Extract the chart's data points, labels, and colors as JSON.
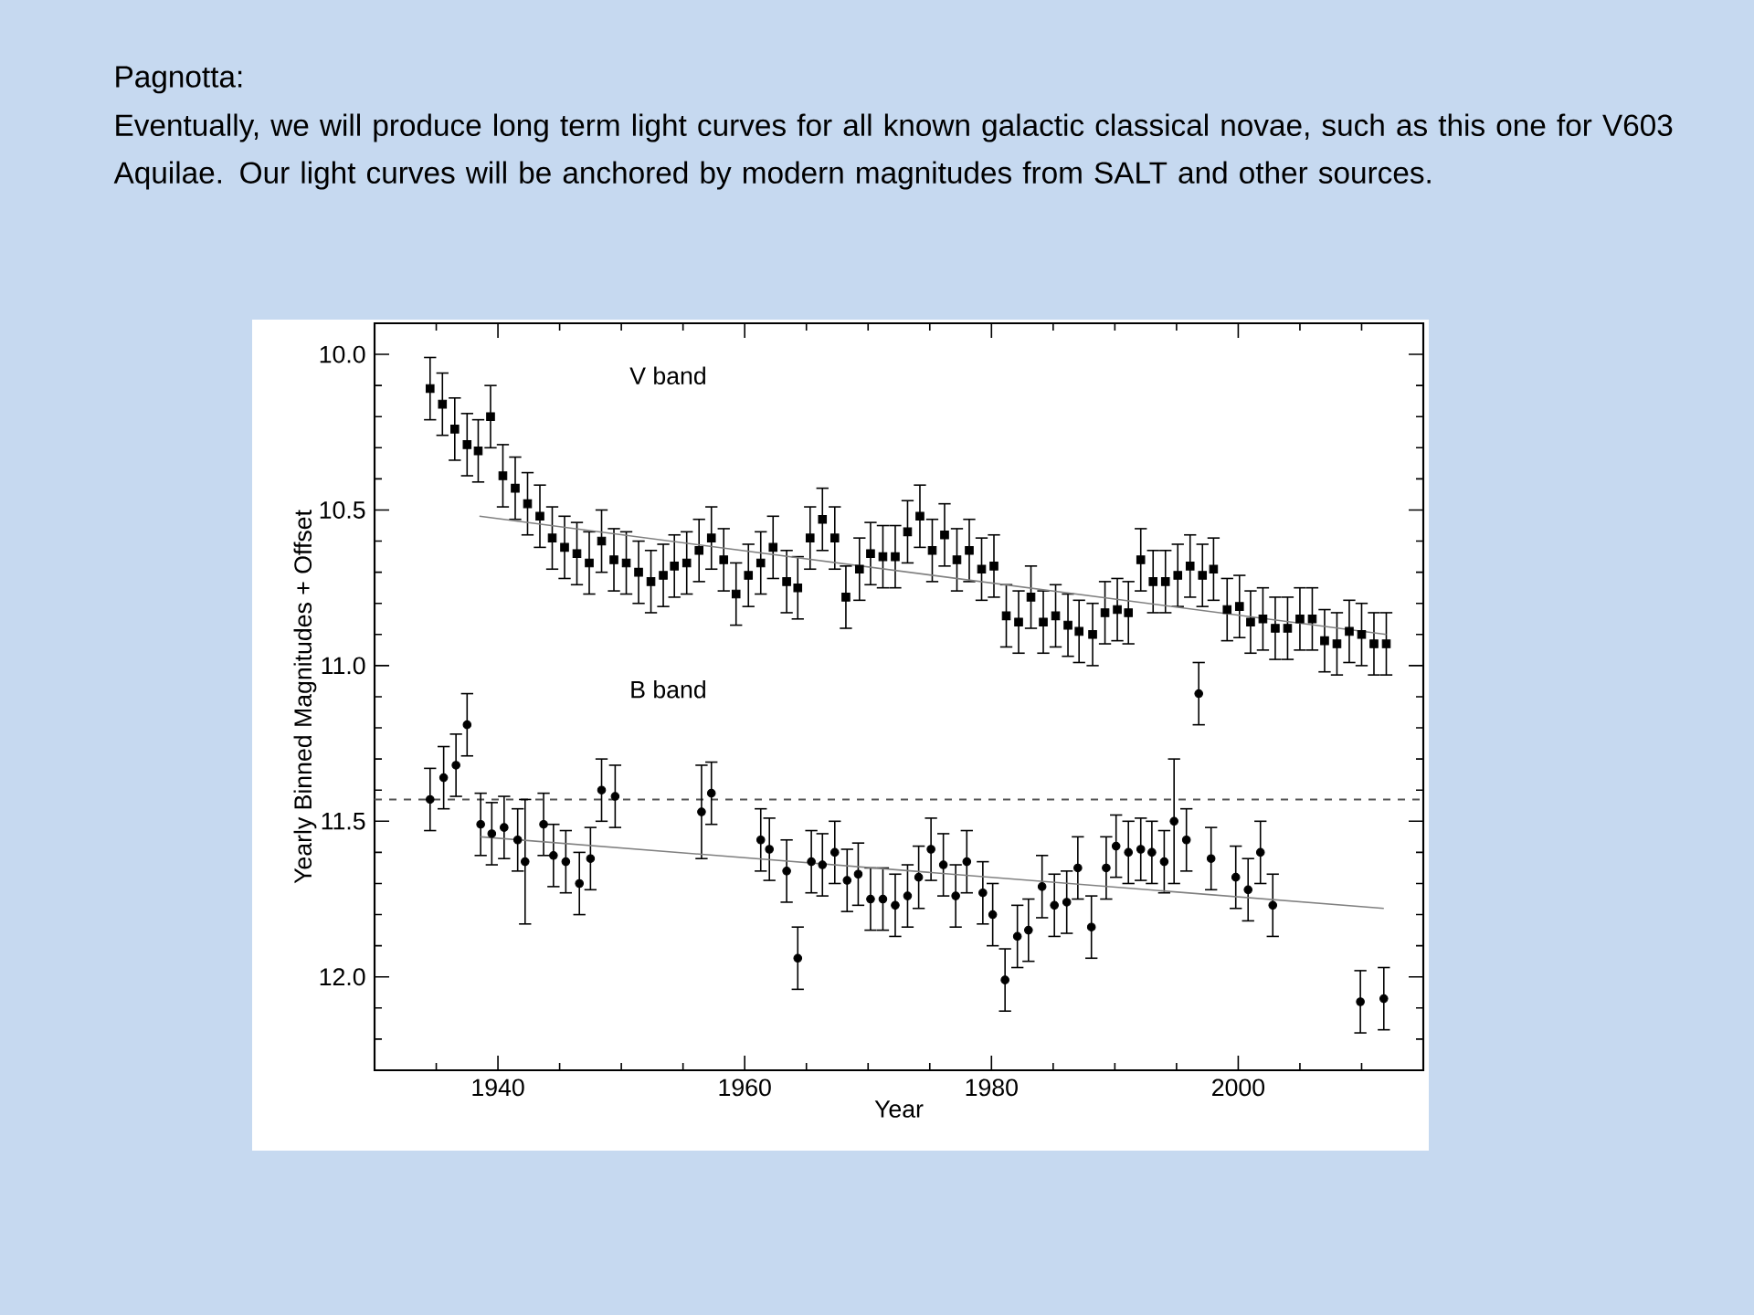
{
  "chart_data": {
    "type": "scatter",
    "title": "Pagnotta:",
    "subtitle": "Eventually, we will produce long term light curves for all known galactic classical novae, such as this one for V603 Aquilae. Our light curves will be anchored by modern magnitudes from SALT and other sources.",
    "xlabel": "Year",
    "ylabel": "Yearly Binned Magnitudes + Offset",
    "xlim": [
      1930,
      2015
    ],
    "ylim": [
      12.3,
      9.9
    ],
    "xticks": [
      {
        "value": 1935,
        "label": null
      },
      {
        "value": 1940,
        "label": "1940"
      },
      {
        "value": 1945,
        "label": null
      },
      {
        "value": 1950,
        "label": null
      },
      {
        "value": 1955,
        "label": null
      },
      {
        "value": 1960,
        "label": "1960"
      },
      {
        "value": 1965,
        "label": null
      },
      {
        "value": 1970,
        "label": null
      },
      {
        "value": 1975,
        "label": null
      },
      {
        "value": 1980,
        "label": "1980"
      },
      {
        "value": 1985,
        "label": null
      },
      {
        "value": 1990,
        "label": null
      },
      {
        "value": 1995,
        "label": null
      },
      {
        "value": 2000,
        "label": "2000"
      },
      {
        "value": 2005,
        "label": null
      },
      {
        "value": 2010,
        "label": null
      }
    ],
    "yticks": [
      {
        "value": 10,
        "label": "10.0"
      },
      {
        "value": 10.1,
        "label": null
      },
      {
        "value": 10.2,
        "label": null
      },
      {
        "value": 10.3,
        "label": null
      },
      {
        "value": 10.4,
        "label": null
      },
      {
        "value": 10.5,
        "label": "10.5"
      },
      {
        "value": 10.6,
        "label": null
      },
      {
        "value": 10.7,
        "label": null
      },
      {
        "value": 10.8,
        "label": null
      },
      {
        "value": 10.9,
        "label": null
      },
      {
        "value": 11,
        "label": "11.0"
      },
      {
        "value": 11.1,
        "label": null
      },
      {
        "value": 11.2,
        "label": null
      },
      {
        "value": 11.3,
        "label": null
      },
      {
        "value": 11.4,
        "label": null
      },
      {
        "value": 11.5,
        "label": "11.5"
      },
      {
        "value": 11.6,
        "label": null
      },
      {
        "value": 11.7,
        "label": null
      },
      {
        "value": 11.8,
        "label": null
      },
      {
        "value": 11.9,
        "label": null
      },
      {
        "value": 12,
        "label": "12.0"
      },
      {
        "value": 12.1,
        "label": null
      },
      {
        "value": 12.2,
        "label": null
      }
    ],
    "annotations": [
      "V band",
      "B band"
    ],
    "ref_lines": [
      {
        "axis": "y",
        "value": 11.43,
        "color": "#555555",
        "line_style": "dashed"
      }
    ],
    "series": [
      {
        "type": "scatter",
        "marker": "square",
        "color": "#000000",
        "x": [
          1934.5,
          1935.5,
          1936.5,
          1937.5,
          1938.4,
          1939.4,
          1940.4,
          1941.4,
          1942.4,
          1943.4,
          1944.4,
          1945.4,
          1946.4,
          1947.4,
          1948.4,
          1949.4,
          1950.4,
          1951.4,
          1952.4,
          1953.4,
          1954.3,
          1955.3,
          1956.3,
          1957.3,
          1958.3,
          1959.3,
          1960.3,
          1961.3,
          1962.3,
          1963.4,
          1964.3,
          1965.3,
          1966.3,
          1967.3,
          1968.2,
          1969.3,
          1970.2,
          1971.2,
          1972.2,
          1973.2,
          1974.2,
          1975.2,
          1976.2,
          1977.2,
          1978.2,
          1979.2,
          1980.2,
          1981.2,
          1982.2,
          1983.2,
          1984.2,
          1985.2,
          1986.2,
          1987.1,
          1988.2,
          1989.2,
          1990.2,
          1991.1,
          1992.1,
          1993.1,
          1994.1,
          1995.1,
          1996.1,
          1997.1,
          1998.0,
          1999.1,
          2000.1,
          2001.0,
          2002.0,
          2003.0,
          2004.0,
          2005.0,
          2006.0,
          2007.0,
          2008.0,
          2009.0,
          2010.0,
          2011.0,
          2012.0
        ],
        "values": [
          10.11,
          10.16,
          10.24,
          10.29,
          10.31,
          10.2,
          10.39,
          10.43,
          10.48,
          10.52,
          10.59,
          10.62,
          10.64,
          10.67,
          10.6,
          10.66,
          10.67,
          10.7,
          10.73,
          10.71,
          10.68,
          10.67,
          10.63,
          10.59,
          10.66,
          10.77,
          10.71,
          10.67,
          10.62,
          10.73,
          10.75,
          10.59,
          10.53,
          10.59,
          10.78,
          10.69,
          10.64,
          10.65,
          10.65,
          10.57,
          10.52,
          10.63,
          10.58,
          10.66,
          10.63,
          10.69,
          10.68,
          10.84,
          10.86,
          10.78,
          10.86,
          10.84,
          10.87,
          10.89,
          10.9,
          10.83,
          10.82,
          10.83,
          10.66,
          10.73,
          10.73,
          10.71,
          10.68,
          10.71,
          10.69,
          10.82,
          10.81,
          10.86,
          10.85,
          10.88,
          10.88,
          10.85,
          10.85,
          10.92,
          10.93,
          10.89,
          10.9,
          10.93,
          10.93
        ],
        "errors": [
          0.1,
          0.1,
          0.1,
          0.1,
          0.1,
          0.1,
          0.1,
          0.1,
          0.1,
          0.1,
          0.1,
          0.1,
          0.1,
          0.1,
          0.1,
          0.1,
          0.1,
          0.1,
          0.1,
          0.1,
          0.1,
          0.1,
          0.1,
          0.1,
          0.1,
          0.1,
          0.1,
          0.1,
          0.1,
          0.1,
          0.1,
          0.1,
          0.1,
          0.1,
          0.1,
          0.1,
          0.1,
          0.1,
          0.1,
          0.1,
          0.1,
          0.1,
          0.1,
          0.1,
          0.1,
          0.1,
          0.1,
          0.1,
          0.1,
          0.1,
          0.1,
          0.1,
          0.1,
          0.1,
          0.1,
          0.1,
          0.1,
          0.1,
          0.1,
          0.1,
          0.1,
          0.1,
          0.1,
          0.1,
          0.1,
          0.1,
          0.1,
          0.1,
          0.1,
          0.1,
          0.1,
          0.1,
          0.1,
          0.1,
          0.1,
          0.1,
          0.1,
          0.1,
          0.1
        ]
      },
      {
        "type": "scatter",
        "marker": "circle",
        "color": "#000000",
        "x": [
          1934.5,
          1935.6,
          1936.6,
          1937.5,
          1938.6,
          1939.5,
          1940.5,
          1941.6,
          1942.2,
          1943.7,
          1944.5,
          1945.5,
          1946.6,
          1947.5,
          1948.4,
          1949.5,
          1956.5,
          1957.3,
          1961.3,
          1962.0,
          1963.4,
          1964.3,
          1965.4,
          1966.3,
          1967.3,
          1968.3,
          1969.2,
          1970.2,
          1971.2,
          1972.2,
          1973.2,
          1974.1,
          1975.1,
          1976.1,
          1977.1,
          1978.0,
          1979.3,
          1980.1,
          1981.1,
          1982.1,
          1983.0,
          1984.1,
          1985.1,
          1986.1,
          1987.0,
          1988.1,
          1989.3,
          1990.1,
          1991.1,
          1992.1,
          1993.0,
          1994.0,
          1994.8,
          1995.8,
          1996.8,
          1997.8,
          1999.8,
          2000.8,
          2001.8,
          2002.8,
          2009.9,
          2011.8
        ],
        "values": [
          11.43,
          11.36,
          11.32,
          11.19,
          11.51,
          11.54,
          11.52,
          11.56,
          11.63,
          11.51,
          11.61,
          11.63,
          11.7,
          11.62,
          11.4,
          11.42,
          11.47,
          11.41,
          11.56,
          11.59,
          11.66,
          11.94,
          11.63,
          11.64,
          11.6,
          11.69,
          11.67,
          11.75,
          11.75,
          11.77,
          11.74,
          11.68,
          11.59,
          11.64,
          11.74,
          11.63,
          11.73,
          11.8,
          12.01,
          11.87,
          11.85,
          11.71,
          11.77,
          11.76,
          11.65,
          11.84,
          11.65,
          11.58,
          11.6,
          11.59,
          11.6,
          11.63,
          11.5,
          11.56,
          11.09,
          11.62,
          11.68,
          11.72,
          11.6,
          11.77,
          12.08,
          12.07
        ],
        "errors": [
          0.1,
          0.1,
          0.1,
          0.1,
          0.1,
          0.1,
          0.1,
          0.1,
          0.2,
          0.1,
          0.1,
          0.1,
          0.1,
          0.1,
          0.1,
          0.1,
          0.15,
          0.1,
          0.1,
          0.1,
          0.1,
          0.1,
          0.1,
          0.1,
          0.1,
          0.1,
          0.1,
          0.1,
          0.1,
          0.1,
          0.1,
          0.1,
          0.1,
          0.1,
          0.1,
          0.1,
          0.1,
          0.1,
          0.1,
          0.1,
          0.1,
          0.1,
          0.1,
          0.1,
          0.1,
          0.1,
          0.1,
          0.1,
          0.1,
          0.1,
          0.1,
          0.1,
          0.2,
          0.1,
          0.1,
          0.1,
          0.1,
          0.1,
          0.1,
          0.1,
          0.1,
          0.1
        ]
      },
      {
        "type": "line",
        "marker": "none",
        "color": "#808080",
        "x": [
          1938.5,
          2012
        ],
        "values": [
          10.52,
          10.9
        ]
      },
      {
        "type": "line",
        "marker": "none",
        "color": "#808080",
        "x": [
          1938.6,
          2011.8
        ],
        "values": [
          11.55,
          11.78
        ]
      }
    ]
  }
}
